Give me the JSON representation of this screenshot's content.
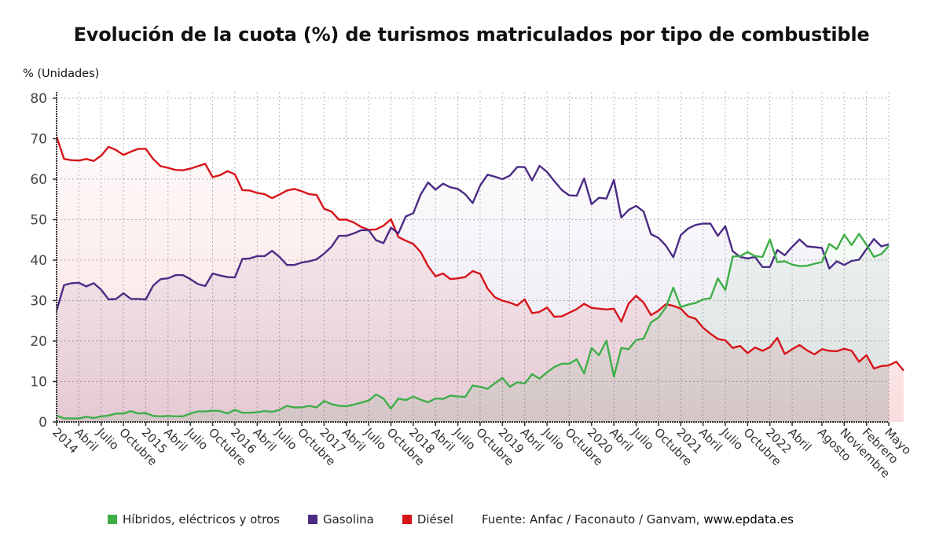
{
  "chart_data": {
    "type": "area",
    "title": "Evolución de la cuota (%) de turismos matriculados por tipo de combustible",
    "ylabel": "% (Unidades)",
    "xlabel": "",
    "ylim": [
      0,
      80
    ],
    "yticks": [
      0,
      10,
      20,
      30,
      40,
      50,
      60,
      70,
      80
    ],
    "grid": true,
    "legend_position": "bottom",
    "x_start": "2014-01",
    "x_end": "2023-05",
    "x_frequency": "monthly",
    "x_tick_labels": [
      {
        "month_index": 0,
        "label": "2014"
      },
      {
        "month_index": 3,
        "label": "Abril"
      },
      {
        "month_index": 6,
        "label": "Julio"
      },
      {
        "month_index": 9,
        "label": "Octubre"
      },
      {
        "month_index": 12,
        "label": "2015"
      },
      {
        "month_index": 15,
        "label": "Abril"
      },
      {
        "month_index": 18,
        "label": "Julio"
      },
      {
        "month_index": 21,
        "label": "Octubre"
      },
      {
        "month_index": 24,
        "label": "2016"
      },
      {
        "month_index": 27,
        "label": "Abril"
      },
      {
        "month_index": 30,
        "label": "Julio"
      },
      {
        "month_index": 33,
        "label": "Octubre"
      },
      {
        "month_index": 36,
        "label": "2017"
      },
      {
        "month_index": 39,
        "label": "Abril"
      },
      {
        "month_index": 42,
        "label": "Julio"
      },
      {
        "month_index": 45,
        "label": "Octubre"
      },
      {
        "month_index": 48,
        "label": "2018"
      },
      {
        "month_index": 51,
        "label": "Abril"
      },
      {
        "month_index": 54,
        "label": "Julio"
      },
      {
        "month_index": 57,
        "label": "Octubre"
      },
      {
        "month_index": 60,
        "label": "2019"
      },
      {
        "month_index": 63,
        "label": "Abril"
      },
      {
        "month_index": 66,
        "label": "Julio"
      },
      {
        "month_index": 69,
        "label": "Octubre"
      },
      {
        "month_index": 72,
        "label": "2020"
      },
      {
        "month_index": 75,
        "label": "Abril"
      },
      {
        "month_index": 78,
        "label": "Julio"
      },
      {
        "month_index": 81,
        "label": "Octubre"
      },
      {
        "month_index": 84,
        "label": "2021"
      },
      {
        "month_index": 87,
        "label": "Abril"
      },
      {
        "month_index": 90,
        "label": "Julio"
      },
      {
        "month_index": 93,
        "label": "Octubre"
      },
      {
        "month_index": 96,
        "label": "2022"
      },
      {
        "month_index": 99,
        "label": "Abril"
      },
      {
        "month_index": 103,
        "label": "Agosto"
      },
      {
        "month_index": 106,
        "label": "Noviembre"
      },
      {
        "month_index": 109,
        "label": "Febrero"
      },
      {
        "month_index": 112,
        "label": "Mayo"
      }
    ],
    "series": [
      {
        "name": "Gasolina",
        "color": "#4b2c85",
        "values": [
          27.5,
          33.8,
          34.3,
          34.4,
          33.5,
          34.3,
          32.7,
          30.3,
          30.4,
          31.8,
          30.4,
          30.4,
          30.3,
          33.7,
          35.3,
          35.5,
          36.3,
          36.3,
          35.3,
          34.1,
          33.6,
          36.7,
          36.2,
          35.8,
          35.7,
          40.3,
          40.4,
          41.0,
          41.0,
          42.3,
          40.8,
          38.8,
          38.8,
          39.4,
          39.7,
          40.2,
          41.6,
          43.3,
          46.0,
          46.0,
          46.6,
          47.4,
          47.4,
          44.9,
          44.2,
          48.0,
          46.6,
          50.8,
          51.6,
          56.2,
          59.2,
          57.4,
          58.9,
          58.0,
          57.6,
          56.3,
          54.1,
          58.4,
          61.1,
          60.6,
          60.0,
          60.9,
          63.0,
          63.0,
          59.7,
          63.3,
          61.8,
          59.5,
          57.3,
          56.0,
          55.9,
          60.2,
          53.8,
          55.4,
          55.2,
          59.8,
          50.5,
          52.4,
          53.4,
          52.0,
          46.4,
          45.5,
          43.6,
          40.7,
          46.2,
          47.8,
          48.7,
          49.0,
          49.0,
          46.0,
          48.4,
          42.2,
          40.8,
          40.4,
          40.8,
          38.3,
          38.3,
          42.5,
          41.2,
          43.3,
          45.1,
          43.4,
          43.2,
          43.0,
          37.9,
          39.7,
          38.8,
          39.8,
          40.1,
          42.7,
          45.2,
          43.4,
          43.9
        ]
      },
      {
        "name": "Diésel",
        "color": "#d7141a",
        "values": [
          70.5,
          65.0,
          64.7,
          64.6,
          65.0,
          64.5,
          65.8,
          68.0,
          67.2,
          66.0,
          66.8,
          67.5,
          67.5,
          65.0,
          63.2,
          62.8,
          62.3,
          62.2,
          62.6,
          63.2,
          63.8,
          60.5,
          61.0,
          62.0,
          61.2,
          57.3,
          57.2,
          56.6,
          56.3,
          55.3,
          56.2,
          57.2,
          57.6,
          57.0,
          56.3,
          56.1,
          52.7,
          52.0,
          50.0,
          50.0,
          49.3,
          48.2,
          47.5,
          47.6,
          48.5,
          50.1,
          45.7,
          44.8,
          44.0,
          42.0,
          38.5,
          36.0,
          36.7,
          35.3,
          35.5,
          35.8,
          37.3,
          36.6,
          33.0,
          30.8,
          30.0,
          29.5,
          28.8,
          30.3,
          26.9,
          27.2,
          28.3,
          26.0,
          26.1,
          27.0,
          27.9,
          29.2,
          28.2,
          28.0,
          27.8,
          28.0,
          24.8,
          29.3,
          31.2,
          29.5,
          26.4,
          27.5,
          29.1,
          28.7,
          28.0,
          26.1,
          25.5,
          23.3,
          21.8,
          20.5,
          20.2,
          18.3,
          18.8,
          17.0,
          18.4,
          17.6,
          18.5,
          20.8,
          16.8,
          18.0,
          19.0,
          17.7,
          16.7,
          18.0,
          17.6,
          17.5,
          18.1,
          17.6,
          14.9,
          16.5,
          13.2,
          13.8,
          14.0,
          14.9,
          12.7
        ]
      },
      {
        "name": "Híbridos, eléctricos y otros",
        "color": "#3fae49",
        "values": [
          1.6,
          0.9,
          0.9,
          0.9,
          1.3,
          1.0,
          1.4,
          1.6,
          2.1,
          2.1,
          2.7,
          2.1,
          2.2,
          1.5,
          1.4,
          1.5,
          1.4,
          1.4,
          2.1,
          2.6,
          2.6,
          2.8,
          2.7,
          2.1,
          3.0,
          2.3,
          2.3,
          2.4,
          2.7,
          2.5,
          3.0,
          4.0,
          3.6,
          3.6,
          4.0,
          3.6,
          5.2,
          4.4,
          4.0,
          3.9,
          4.3,
          4.8,
          5.3,
          6.8,
          5.8,
          3.3,
          5.8,
          5.4,
          6.3,
          5.5,
          4.9,
          5.8,
          5.7,
          6.5,
          6.3,
          6.2,
          9.0,
          8.7,
          8.2,
          9.6,
          10.9,
          8.7,
          9.8,
          9.5,
          11.8,
          10.7,
          12.3,
          13.6,
          14.4,
          14.4,
          15.5,
          12.0,
          18.3,
          16.5,
          20.1,
          11.2,
          18.3,
          18.0,
          20.3,
          20.6,
          24.6,
          25.8,
          28.3,
          33.2,
          28.4,
          29.0,
          29.4,
          30.3,
          30.6,
          35.5,
          32.6,
          40.9,
          41.0,
          42.0,
          41.0,
          40.8,
          45.1,
          39.5,
          39.7,
          38.9,
          38.5,
          38.6,
          39.1,
          39.5,
          44.0,
          42.7,
          46.3,
          43.7,
          46.5,
          43.8,
          40.8,
          41.5,
          43.5
        ]
      }
    ],
    "source": "Fuente: Anfac / Faconauto / Ganvam,",
    "source_site": "www.epdata.es"
  }
}
